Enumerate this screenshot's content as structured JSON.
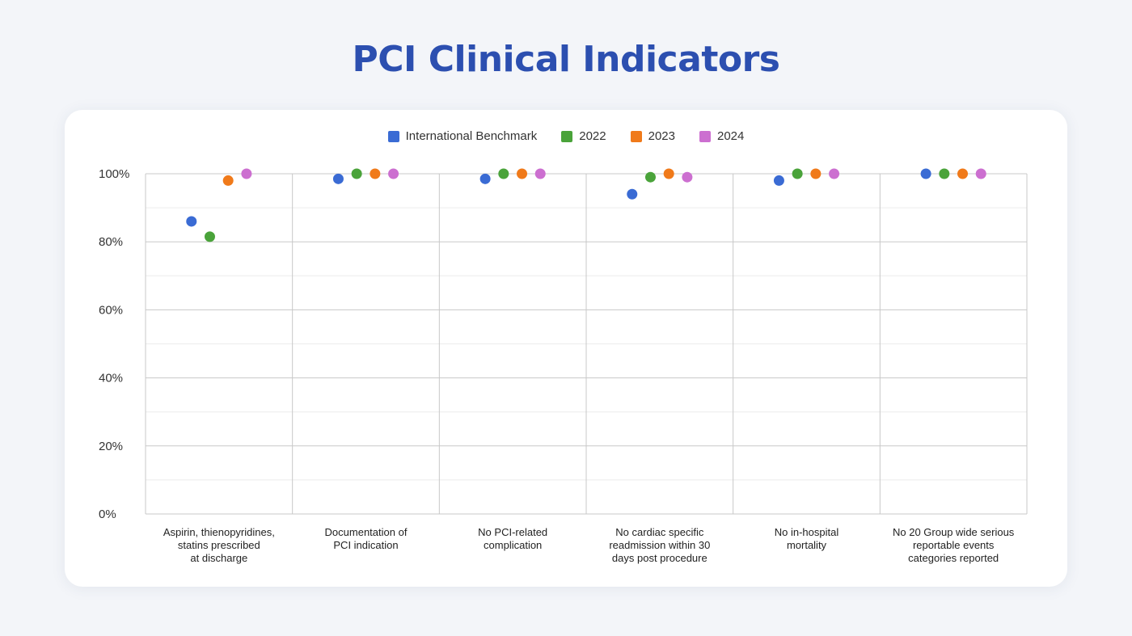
{
  "title": "PCI Clinical Indicators",
  "chart_data": {
    "type": "scatter",
    "title": "PCI Clinical Indicators",
    "xlabel": "",
    "ylabel": "",
    "ylim": [
      0,
      100
    ],
    "yticks": [
      "0%",
      "20%",
      "40%",
      "60%",
      "80%",
      "100%"
    ],
    "ytick_values": [
      0,
      20,
      40,
      60,
      80,
      100
    ],
    "legend_position": "top-center",
    "categories": [
      [
        "Aspirin, thienopyridines,",
        "statins prescribed",
        "at discharge"
      ],
      [
        "Documentation of",
        "PCI indication"
      ],
      [
        "No PCI-related",
        "complication"
      ],
      [
        "No cardiac specific",
        "readmission within 30",
        "days post procedure"
      ],
      [
        "No in-hospital",
        "mortality"
      ],
      [
        "No 20 Group wide serious",
        "reportable events",
        "categories reported"
      ]
    ],
    "series": [
      {
        "name": "International Benchmark",
        "color": "#3a6bd4",
        "values": [
          86,
          98.5,
          98.5,
          94,
          98,
          100
        ]
      },
      {
        "name": "2022",
        "color": "#4aa33a",
        "values": [
          81.5,
          100,
          100,
          99,
          100,
          100
        ]
      },
      {
        "name": "2023",
        "color": "#f07a1a",
        "values": [
          98,
          100,
          100,
          100,
          100,
          100
        ]
      },
      {
        "name": "2024",
        "color": "#cc6fd0",
        "values": [
          100,
          100,
          100,
          99,
          100,
          100
        ]
      }
    ]
  }
}
